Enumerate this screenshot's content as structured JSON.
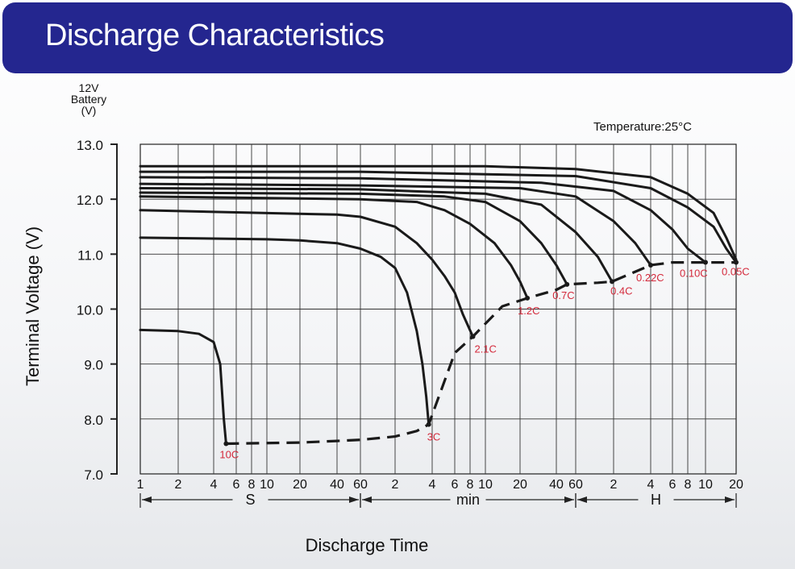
{
  "header": {
    "title": "Discharge Characteristics"
  },
  "chart_data": {
    "type": "line",
    "title": "",
    "y_unit_label": [
      "12V",
      "Battery",
      "(V)"
    ],
    "ylabel": "Terminal Voltage (V)",
    "xlabel": "Discharge Time",
    "annotation": "Temperature:25°C",
    "ylim": [
      7.0,
      13.0
    ],
    "y_ticks": [
      "7.0",
      "8.0",
      "9.0",
      "10.0",
      "11.0",
      "12.0",
      "13.0"
    ],
    "x_scale": "log",
    "x_ticks": [
      "1",
      "2",
      "4",
      "6",
      "8",
      "10",
      "20",
      "40",
      "60",
      "2",
      "4",
      "6",
      "8",
      "10",
      "20",
      "40",
      "60",
      "2",
      "4",
      "6",
      "8",
      "10",
      "20"
    ],
    "x_units": [
      {
        "label": "S"
      },
      {
        "label": "min"
      },
      {
        "label": "H"
      }
    ],
    "grid": true,
    "series": [
      {
        "name": "10C",
        "points": [
          [
            1,
            9.62
          ],
          [
            2,
            9.6
          ],
          [
            3,
            9.55
          ],
          [
            4,
            9.4
          ],
          [
            4.5,
            9.0
          ],
          [
            4.8,
            8.0
          ],
          [
            5,
            7.55
          ]
        ]
      },
      {
        "name": "3C",
        "points": [
          [
            1,
            11.3
          ],
          [
            10,
            11.27
          ],
          [
            20,
            11.25
          ],
          [
            40,
            11.2
          ],
          [
            60,
            11.1
          ],
          [
            90,
            10.95
          ],
          [
            120,
            10.75
          ],
          [
            150,
            10.3
          ],
          [
            180,
            9.6
          ],
          [
            200,
            9.0
          ],
          [
            215,
            8.4
          ],
          [
            225,
            7.9
          ]
        ]
      },
      {
        "name": "2.1C",
        "points": [
          [
            1,
            11.8
          ],
          [
            40,
            11.72
          ],
          [
            60,
            11.68
          ],
          [
            120,
            11.5
          ],
          [
            180,
            11.2
          ],
          [
            240,
            10.9
          ],
          [
            300,
            10.6
          ],
          [
            360,
            10.3
          ],
          [
            420,
            9.9
          ],
          [
            500,
            9.5
          ]
        ]
      },
      {
        "name": "1.2C",
        "points": [
          [
            1,
            12.05
          ],
          [
            60,
            12.0
          ],
          [
            180,
            11.95
          ],
          [
            300,
            11.8
          ],
          [
            480,
            11.55
          ],
          [
            720,
            11.2
          ],
          [
            1000,
            10.8
          ],
          [
            1200,
            10.5
          ],
          [
            1380,
            10.2
          ]
        ]
      },
      {
        "name": "0.7C",
        "points": [
          [
            1,
            12.12
          ],
          [
            60,
            12.1
          ],
          [
            300,
            12.05
          ],
          [
            600,
            11.95
          ],
          [
            1200,
            11.6
          ],
          [
            1800,
            11.2
          ],
          [
            2400,
            10.8
          ],
          [
            3000,
            10.45
          ]
        ]
      },
      {
        "name": "0.4C",
        "points": [
          [
            1,
            12.2
          ],
          [
            60,
            12.18
          ],
          [
            600,
            12.1
          ],
          [
            1800,
            11.9
          ],
          [
            3600,
            11.4
          ],
          [
            5400,
            10.95
          ],
          [
            7000,
            10.5
          ]
        ]
      },
      {
        "name": "0.22C",
        "points": [
          [
            1,
            12.28
          ],
          [
            60,
            12.25
          ],
          [
            1200,
            12.2
          ],
          [
            3600,
            12.05
          ],
          [
            7200,
            11.6
          ],
          [
            10800,
            11.2
          ],
          [
            14400,
            10.8
          ]
        ]
      },
      {
        "name": "0.10C",
        "points": [
          [
            1,
            12.4
          ],
          [
            60,
            12.38
          ],
          [
            1800,
            12.3
          ],
          [
            7200,
            12.15
          ],
          [
            14400,
            11.8
          ],
          [
            21600,
            11.45
          ],
          [
            28800,
            11.1
          ],
          [
            36000,
            10.85
          ]
        ]
      },
      {
        "name": "0.05C",
        "points": [
          [
            1,
            12.5
          ],
          [
            60,
            12.5
          ],
          [
            3600,
            12.42
          ],
          [
            14400,
            12.2
          ],
          [
            28800,
            11.85
          ],
          [
            43200,
            11.5
          ],
          [
            57600,
            11.1
          ],
          [
            72000,
            10.85
          ]
        ]
      },
      {
        "name": "0.05C+",
        "points": [
          [
            1,
            12.6
          ],
          [
            600,
            12.6
          ],
          [
            3600,
            12.55
          ],
          [
            14400,
            12.4
          ],
          [
            28800,
            12.1
          ],
          [
            43200,
            11.75
          ],
          [
            57600,
            11.3
          ],
          [
            72000,
            10.9
          ]
        ]
      }
    ],
    "cutoff_line": {
      "style": "dashed",
      "points": [
        [
          5,
          7.55
        ],
        [
          20,
          7.57
        ],
        [
          40,
          7.6
        ],
        [
          60,
          7.62
        ],
        [
          120,
          7.68
        ],
        [
          180,
          7.78
        ],
        [
          225,
          7.9
        ],
        [
          360,
          9.2
        ],
        [
          500,
          9.5
        ],
        [
          840,
          10.05
        ],
        [
          1380,
          10.2
        ],
        [
          2400,
          10.35
        ],
        [
          3000,
          10.45
        ],
        [
          5400,
          10.48
        ],
        [
          7000,
          10.5
        ],
        [
          14400,
          10.8
        ],
        [
          21600,
          10.85
        ],
        [
          36000,
          10.85
        ],
        [
          72000,
          10.85
        ]
      ]
    },
    "endpoint_labels": [
      {
        "text": "10C",
        "x": 5,
        "y": 7.55
      },
      {
        "text": "3C",
        "x": 225,
        "y": 7.9
      },
      {
        "text": "2.1C",
        "x": 500,
        "y": 9.5
      },
      {
        "text": "1.2C",
        "x": 1380,
        "y": 10.2
      },
      {
        "text": "0.7C",
        "x": 3000,
        "y": 10.45
      },
      {
        "text": "0.4C",
        "x": 7000,
        "y": 10.5
      },
      {
        "text": "0.22C",
        "x": 14400,
        "y": 10.8
      },
      {
        "text": "0.10C",
        "x": 36000,
        "y": 10.85
      },
      {
        "text": "0.05C",
        "x": 72000,
        "y": 10.85
      }
    ],
    "colors": {
      "curve": "#1a1a1a",
      "label": "#d42a3c",
      "grid": "#222222",
      "header_bg": "#24268f"
    }
  }
}
